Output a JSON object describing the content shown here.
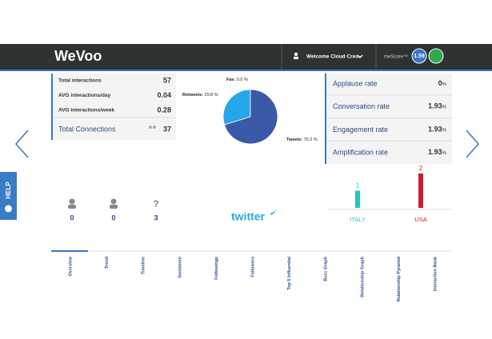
{
  "header": {
    "logo": "WeVoo",
    "welcome": "Welcome Cloud Creo",
    "mescore_label": "meScore™",
    "mescore": 1.59
  },
  "stats": {
    "rows": [
      {
        "label": "Total interactions",
        "value": 57
      },
      {
        "label": "AVG interactions/day",
        "value": 0.04
      },
      {
        "label": "AVG interactions/week",
        "value": 0.28
      }
    ],
    "connections": {
      "label": "Total Connections",
      "value": 37
    }
  },
  "pie": {
    "type": "pie",
    "categories": [
      "Fav:",
      "Retweets:",
      "Tweets:"
    ],
    "values": [
      0,
      29.8,
      70.2
    ],
    "value_labels": [
      "0.0 %",
      "29.8 %",
      "70.2 %"
    ],
    "colors": [
      "#f39c4a",
      "#28a6ea",
      "#3a5aa8"
    ]
  },
  "rates": [
    {
      "label": "Applause rate",
      "value": 0,
      "unit": "%"
    },
    {
      "label": "Conversation rate",
      "value": 1.93,
      "unit": "%"
    },
    {
      "label": "Engagement rate",
      "value": 1.93,
      "unit": "%"
    },
    {
      "label": "Amplification rate",
      "value": 1.93,
      "unit": "%"
    }
  ],
  "help": "HELP",
  "demographics": [
    {
      "value": 0
    },
    {
      "value": 0
    },
    {
      "symbol": "?",
      "value": 3
    }
  ],
  "twitter": "twitter",
  "countries": {
    "type": "bar",
    "categories": [
      "ITALY",
      "USA"
    ],
    "values": [
      1,
      2
    ],
    "colors": [
      "#2bbfc6",
      "#c8202a"
    ]
  },
  "tabs": [
    "Overview",
    "Trend",
    "Timeline",
    "Sentiment",
    "Followings",
    "Followers",
    "Top 5 Influential",
    "Buzz Graph",
    "Relationship Graph",
    "Relationship Pyramid",
    "Interaction Bank"
  ]
}
